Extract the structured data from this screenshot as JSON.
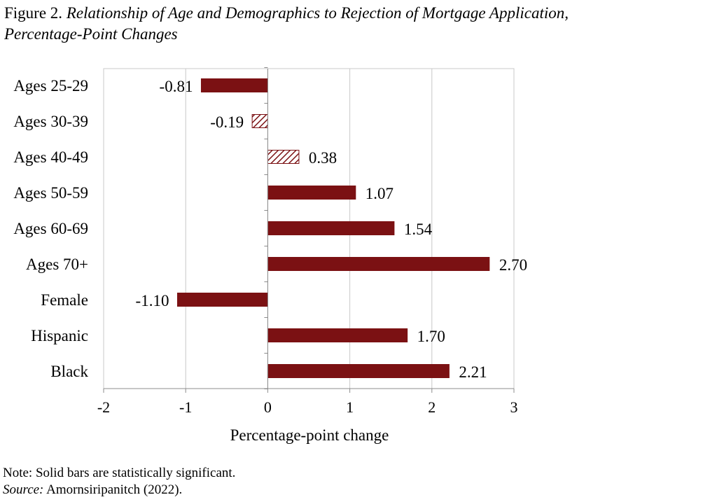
{
  "figure": {
    "label": "Figure 2.",
    "title_line1": "Relationship of Age and Demographics to Rejection of Mortgage Application,",
    "title_line2": "Percentage-Point Changes"
  },
  "note": "Note: Solid bars are statistically significant.",
  "source": {
    "label": "Source:",
    "text": "Amornsiripanitch (2022)."
  },
  "colors": {
    "bar": "#7b1113",
    "grid": "#c8c8c8",
    "axis": "#8c8c8c"
  },
  "chart_data": {
    "type": "bar",
    "orientation": "horizontal",
    "categories": [
      "Ages 25-29",
      "Ages 30-39",
      "Ages 40-49",
      "Ages 50-59",
      "Ages 60-69",
      "Ages 70+",
      "Female",
      "Hispanic",
      "Black"
    ],
    "values": [
      -0.81,
      -0.19,
      0.38,
      1.07,
      1.54,
      2.7,
      -1.1,
      1.7,
      2.21
    ],
    "value_labels": [
      "-0.81",
      "-0.19",
      "0.38",
      "1.07",
      "1.54",
      "2.70",
      "-1.10",
      "1.70",
      "2.21"
    ],
    "significant": [
      true,
      false,
      false,
      true,
      true,
      true,
      true,
      true,
      true
    ],
    "xlabel": "Percentage-point change",
    "xlim": [
      -2,
      3
    ],
    "xticks": [
      -2,
      -1,
      0,
      1,
      2,
      3
    ],
    "xtick_labels": [
      "-2",
      "-1",
      "0",
      "1",
      "2",
      "3"
    ],
    "grid": "vertical"
  }
}
